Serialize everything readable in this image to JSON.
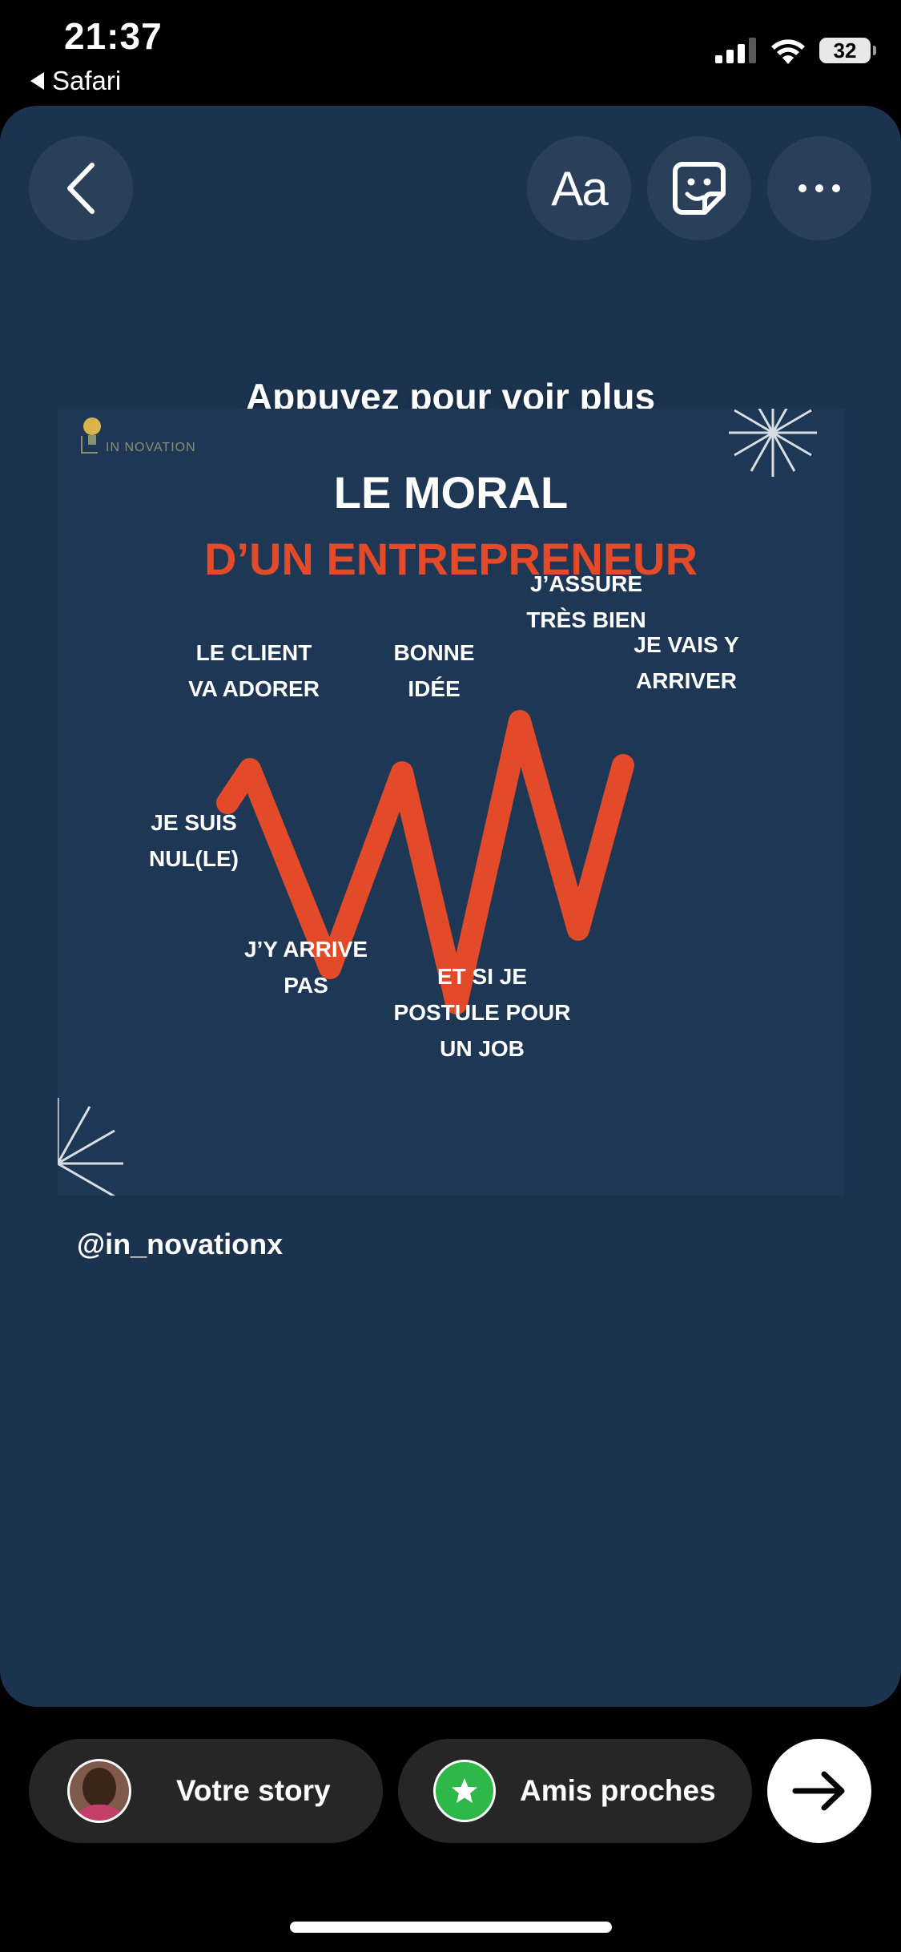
{
  "status_bar": {
    "time": "21:37",
    "back_app": "Safari",
    "battery": "32",
    "icons": [
      "signal-icon",
      "wifi-icon",
      "battery-icon"
    ]
  },
  "story": {
    "tap_hint": "Appuyez pour voir plus",
    "text_button_label": "Aa",
    "icons": [
      "back-chevron-icon",
      "sticker-icon",
      "more-icon"
    ],
    "background_color": "#1c3350"
  },
  "post": {
    "logo_text": "IN NOVATION",
    "title_line1": "LE MORAL",
    "title_line2": "D’UN ENTREPRENEUR",
    "title_line2_color": "#e24a2a",
    "labels": {
      "client_line1": "LE CLIENT",
      "client_line2": "VA ADORER",
      "bonne_line1": "BONNE",
      "bonne_line2": "IDÉE",
      "assure_line1": "J’ASSURE",
      "assure_line2": "TRÈS BIEN",
      "vais_line1": "JE VAIS Y",
      "vais_line2": "ARRIVER",
      "nul_line1": "JE SUIS",
      "nul_line2": "NUL(LE)",
      "arrive_line1": "J’Y ARRIVE",
      "arrive_line2": "PAS",
      "job_line1": "ET SI JE",
      "job_line2": "POSTULE POUR",
      "job_line3": "UN JOB"
    },
    "handle": "@in_novationx"
  },
  "bottom_bar": {
    "your_story": "Votre story",
    "close_friends": "Amis proches",
    "icons": [
      "avatar",
      "star-icon",
      "arrow-right-icon"
    ],
    "close_friends_color": "#2fb84a"
  }
}
